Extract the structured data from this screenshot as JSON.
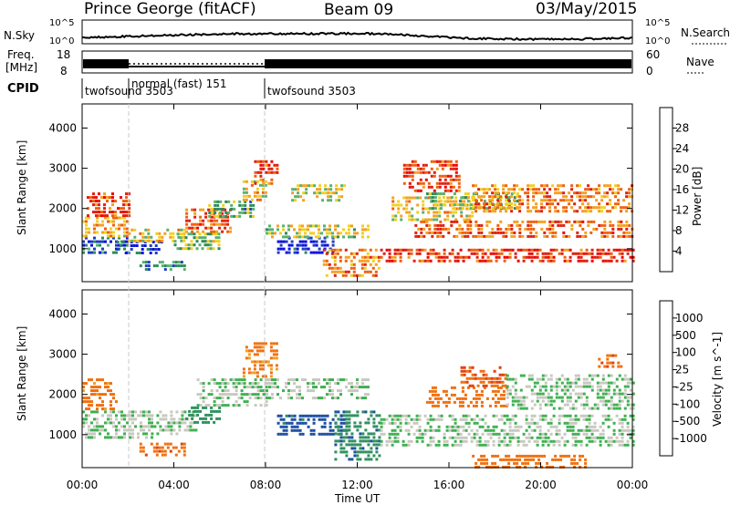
{
  "header": {
    "station": "Prince George (fitACF)",
    "beam": "Beam 09",
    "date": "03/May/2015"
  },
  "top_panels": {
    "nsky_label": "N.Sky",
    "nsky_ticks": [
      "10^5",
      "10^0"
    ],
    "nsearch_label": "N.Search",
    "nsearch_ticks": [
      "10^5",
      "10^0"
    ],
    "freq_label_line1": "Freq.",
    "freq_label_line2": "[MHz]",
    "freq_ticks": [
      "18",
      "8"
    ],
    "nave_label": "Nave",
    "nave_ticks": [
      "60",
      "0"
    ],
    "cpid_label": "CPID",
    "cpid_segments": [
      {
        "name": "twofsound 3503",
        "start_hour": 0,
        "end_hour": 2
      },
      {
        "name": "normal (fast) 151",
        "start_hour": 2,
        "end_hour": 8
      },
      {
        "name": "twofsound 3503",
        "start_hour": 8,
        "end_hour": 24
      }
    ]
  },
  "colors": {
    "power_scale": [
      "#0a10e0",
      "#1f3fbf",
      "#2e8b57",
      "#5ab070",
      "#f0d020",
      "#f5a020",
      "#f06010",
      "#e02010",
      "#f00000"
    ],
    "velocity_scale": [
      "#1010c0",
      "#1f4fa0",
      "#2f8f5f",
      "#3fb050",
      "#c8c8c0",
      "#f0a020",
      "#f07010",
      "#e04010",
      "#f00000"
    ],
    "scatter_grey": "#c8c8c0"
  },
  "chart_data": [
    {
      "type": "heatmap",
      "title": "Power",
      "quantity": "Power [dB]",
      "xlabel": "Time UT",
      "ylabel": "Slant Range [km]",
      "xlim_hours": [
        0,
        24
      ],
      "ylim_km": [
        180,
        4600
      ],
      "x_ticks": [
        "00:00",
        "04:00",
        "08:00",
        "12:00",
        "16:00",
        "20:00",
        "00:00"
      ],
      "y_ticks": [
        1000,
        2000,
        3000,
        4000
      ],
      "colorbar_label": "Power [dB]",
      "colorbar_ticks": [
        "28",
        "24",
        "20",
        "16",
        "12",
        "8",
        "4"
      ],
      "colorbar_range": [
        0,
        30
      ],
      "regions": [
        {
          "t0": 0.0,
          "t1": 2.0,
          "r0": 900,
          "r1": 1300,
          "value": 24
        },
        {
          "t0": 0.0,
          "t1": 2.0,
          "r0": 1300,
          "r1": 1800,
          "value": 12
        },
        {
          "t0": 0.2,
          "t1": 2.0,
          "r0": 1800,
          "r1": 2400,
          "value": 6
        },
        {
          "t0": 1.5,
          "t1": 3.5,
          "r0": 900,
          "r1": 1200,
          "value": 26
        },
        {
          "t0": 2.0,
          "t1": 4.5,
          "r0": 1200,
          "r1": 1500,
          "value": 14
        },
        {
          "t0": 2.5,
          "t1": 4.5,
          "r0": 500,
          "r1": 700,
          "value": 22
        },
        {
          "t0": 4.0,
          "t1": 6.0,
          "r0": 1000,
          "r1": 1400,
          "value": 18
        },
        {
          "t0": 4.5,
          "t1": 6.5,
          "r0": 1400,
          "r1": 2000,
          "value": 8
        },
        {
          "t0": 5.5,
          "t1": 7.5,
          "r0": 1800,
          "r1": 2200,
          "value": 20
        },
        {
          "t0": 7.0,
          "t1": 8.0,
          "r0": 2200,
          "r1": 2700,
          "value": 14
        },
        {
          "t0": 7.5,
          "t1": 8.5,
          "r0": 2600,
          "r1": 3200,
          "value": 6
        },
        {
          "t0": 8.5,
          "t1": 11.0,
          "r0": 900,
          "r1": 1300,
          "value": 28
        },
        {
          "t0": 8.0,
          "t1": 12.5,
          "r0": 1300,
          "r1": 1600,
          "value": 16
        },
        {
          "t0": 9.0,
          "t1": 11.5,
          "r0": 2200,
          "r1": 2600,
          "value": 16
        },
        {
          "t0": 10.5,
          "t1": 13.0,
          "r0": 300,
          "r1": 1000,
          "value": 10
        },
        {
          "t0": 13.5,
          "t1": 17.0,
          "r0": 1700,
          "r1": 2300,
          "value": 14
        },
        {
          "t0": 14.0,
          "t1": 16.5,
          "r0": 2400,
          "r1": 3200,
          "value": 6
        },
        {
          "t0": 14.5,
          "t1": 24.0,
          "r0": 1300,
          "r1": 1700,
          "value": 8
        },
        {
          "t0": 15.0,
          "t1": 19.0,
          "r0": 2000,
          "r1": 2400,
          "value": 18
        },
        {
          "t0": 17.0,
          "t1": 24.0,
          "r0": 1900,
          "r1": 2600,
          "value": 10
        },
        {
          "t0": 13.0,
          "t1": 24.0,
          "r0": 700,
          "r1": 1000,
          "value": 6
        }
      ]
    },
    {
      "type": "heatmap",
      "title": "Velocity",
      "quantity": "Velocity [m s^-1]",
      "xlabel": "Time UT",
      "ylabel": "Slant Range [km]",
      "xlim_hours": [
        0,
        24
      ],
      "ylim_km": [
        180,
        4600
      ],
      "x_ticks": [
        "00:00",
        "04:00",
        "08:00",
        "12:00",
        "16:00",
        "20:00",
        "00:00"
      ],
      "y_ticks": [
        1000,
        2000,
        3000,
        4000
      ],
      "colorbar_label": "Velocity [m s^-1]",
      "colorbar_ticks": [
        "1000",
        "500",
        "100",
        "25",
        "-25",
        "-100",
        "-500",
        "-1000"
      ],
      "regions": [
        {
          "t0": 0.0,
          "t1": 3.0,
          "r0": 900,
          "r1": 1600,
          "value": 0
        },
        {
          "t0": 0.0,
          "t1": 1.5,
          "r0": 1600,
          "r1": 2400,
          "value": -150
        },
        {
          "t0": 2.5,
          "t1": 4.5,
          "r0": 500,
          "r1": 800,
          "value": -400
        },
        {
          "t0": 3.0,
          "t1": 5.0,
          "r0": 1000,
          "r1": 1600,
          "value": 0
        },
        {
          "t0": 4.5,
          "t1": 6.0,
          "r0": 1300,
          "r1": 1700,
          "value": 60
        },
        {
          "t0": 5.0,
          "t1": 8.0,
          "r0": 1700,
          "r1": 2400,
          "value": 0
        },
        {
          "t0": 7.0,
          "t1": 8.5,
          "r0": 2400,
          "r1": 3300,
          "value": -120
        },
        {
          "t0": 8.5,
          "t1": 11.5,
          "r0": 1000,
          "r1": 1500,
          "value": 150
        },
        {
          "t0": 8.0,
          "t1": 12.5,
          "r0": 1900,
          "r1": 2400,
          "value": 0
        },
        {
          "t0": 11.0,
          "t1": 13.0,
          "r0": 400,
          "r1": 1600,
          "value": 80
        },
        {
          "t0": 13.0,
          "t1": 24.0,
          "r0": 700,
          "r1": 1500,
          "value": 0
        },
        {
          "t0": 15.0,
          "t1": 18.5,
          "r0": 1700,
          "r1": 2200,
          "value": -300
        },
        {
          "t0": 16.5,
          "t1": 18.5,
          "r0": 2200,
          "r1": 2700,
          "value": -500
        },
        {
          "t0": 18.5,
          "t1": 24.0,
          "r0": 1600,
          "r1": 2500,
          "value": 0
        },
        {
          "t0": 22.5,
          "t1": 23.5,
          "r0": 2700,
          "r1": 3000,
          "value": -400
        },
        {
          "t0": 17.0,
          "t1": 22.0,
          "r0": 200,
          "r1": 500,
          "value": -200
        }
      ]
    }
  ]
}
